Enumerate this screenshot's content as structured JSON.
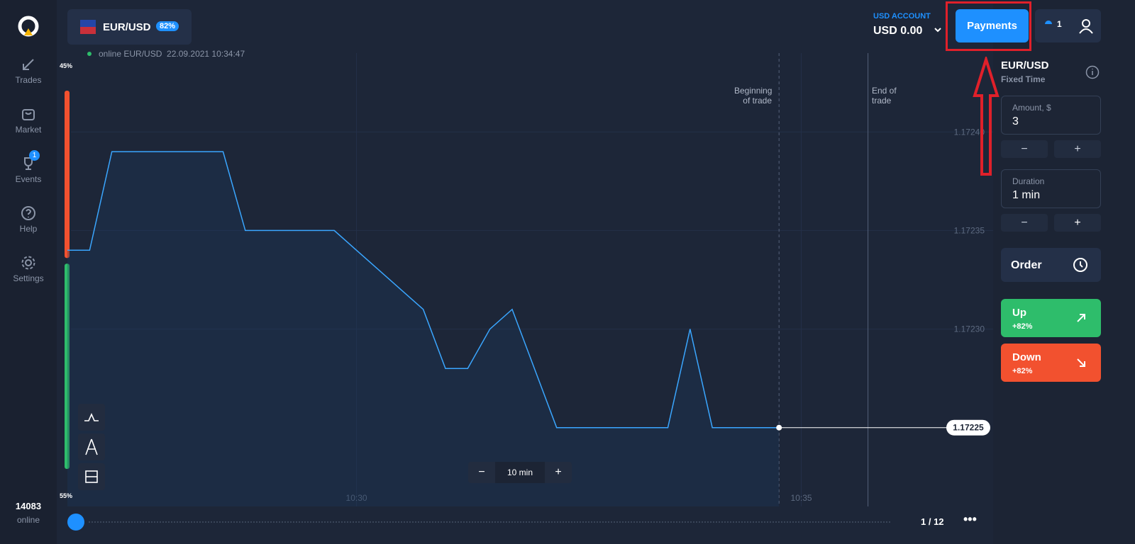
{
  "sidebar": {
    "nav": [
      "Trades",
      "Market",
      "Events",
      "Help",
      "Settings"
    ],
    "events_badge": "1",
    "online_count": "14083",
    "online_label": "online"
  },
  "header": {
    "asset": "EUR/USD",
    "payout": "82%",
    "status": "online EUR/USD  22.09.2021 10:34:47",
    "account_label": "USD ACCOUNT",
    "balance": "USD 0.00",
    "payments": "Payments",
    "open_trades": "1"
  },
  "sentiment": {
    "values": [
      45,
      55
    ],
    "value_labels": [
      "45%",
      "55%"
    ]
  },
  "chart_data": {
    "type": "line",
    "color": "#3aa6ff",
    "categories": [
      null,
      null,
      null,
      null,
      null,
      null,
      null,
      null,
      null,
      null,
      null,
      null,
      null,
      "10:30",
      null,
      null,
      null,
      null,
      null,
      null,
      null,
      null,
      null,
      null,
      null,
      null,
      null,
      null,
      null,
      null,
      null,
      null,
      null,
      "10:35",
      null,
      null,
      null
    ],
    "values": [
      1.17234,
      1.17234,
      1.17239,
      1.17239,
      1.17239,
      1.17239,
      1.17239,
      1.17239,
      1.17235,
      1.17235,
      1.17235,
      1.17235,
      1.17235,
      1.17234,
      1.17233,
      1.17232,
      1.17231,
      1.17228,
      1.17228,
      1.1723,
      1.17231,
      1.17228,
      1.17225,
      1.17225,
      1.17225,
      1.17225,
      1.17225,
      1.17225,
      1.1723,
      1.17225,
      1.17225,
      1.17225,
      1.17225,
      null,
      null,
      null,
      null
    ],
    "ylim": [
      1.17221,
      1.17244
    ],
    "yticks": [
      {
        "value": 1.1724,
        "label": "1.17240"
      },
      1.17235,
      {
        "value": 1.1723,
        "label": "1.17230"
      }
    ],
    "grid": true,
    "annotations": [
      "Beginning of trade",
      "End of trade"
    ]
  },
  "chart_controls": {
    "zoom_minus": "−",
    "timeframe": "10 min",
    "zoom_plus": "+",
    "page": "1 / 12"
  },
  "panel": {
    "asset": "EUR/USD",
    "mode": "Fixed Time",
    "amount_label": "Amount, $",
    "amount": "3",
    "duration_label": "Duration",
    "duration": "1 min",
    "minus": "−",
    "plus": "+",
    "order": "Order",
    "up": "Up",
    "up_payout": "+82%",
    "down": "Down",
    "down_payout": "+82%"
  }
}
